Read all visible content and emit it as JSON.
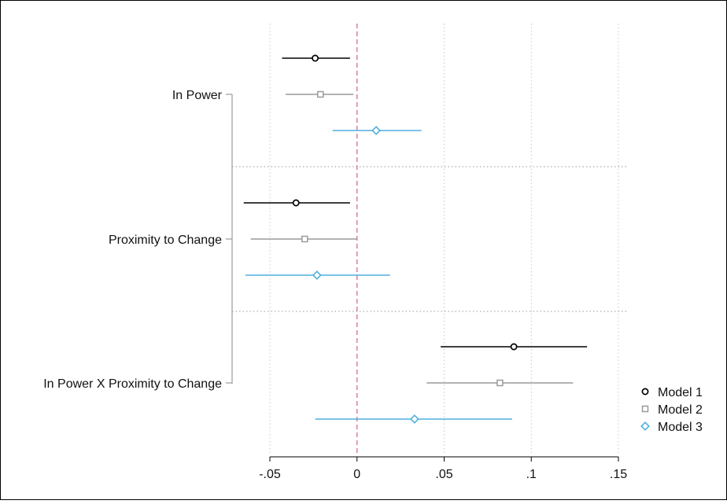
{
  "chart_data": {
    "type": "coefficient-plot",
    "title": "",
    "xlabel": "",
    "ylabel": "",
    "xlim": [
      -0.05,
      0.15
    ],
    "xticks": [
      {
        "value": -0.05,
        "label": "-.05"
      },
      {
        "value": 0,
        "label": "0"
      },
      {
        "value": 0.05,
        "label": ".05"
      },
      {
        "value": 0.1,
        "label": ".1"
      },
      {
        "value": 0.15,
        "label": ".15"
      }
    ],
    "reference_line": {
      "value": 0,
      "style": "dashed",
      "color": "#d9778e"
    },
    "grid": {
      "vertical": true,
      "group_separators": true
    },
    "legend_position": "bottom-right",
    "categories": [
      "In Power",
      "Proximity to Change",
      "In Power X Proximity to Change"
    ],
    "series": [
      {
        "name": "Model 1",
        "marker": "circle",
        "color": "#000000",
        "points": [
          {
            "estimate": -0.024,
            "ci_low": -0.043,
            "ci_high": -0.004
          },
          {
            "estimate": -0.035,
            "ci_low": -0.065,
            "ci_high": -0.004
          },
          {
            "estimate": 0.09,
            "ci_low": 0.048,
            "ci_high": 0.132
          }
        ]
      },
      {
        "name": "Model 2",
        "marker": "square",
        "color": "#9a9a9a",
        "points": [
          {
            "estimate": -0.021,
            "ci_low": -0.041,
            "ci_high": -0.002
          },
          {
            "estimate": -0.03,
            "ci_low": -0.061,
            "ci_high": 0.0
          },
          {
            "estimate": 0.082,
            "ci_low": 0.04,
            "ci_high": 0.124
          }
        ]
      },
      {
        "name": "Model 3",
        "marker": "diamond",
        "color": "#4fb0de",
        "points": [
          {
            "estimate": 0.011,
            "ci_low": -0.014,
            "ci_high": 0.037
          },
          {
            "estimate": -0.023,
            "ci_low": -0.064,
            "ci_high": 0.019
          },
          {
            "estimate": 0.033,
            "ci_low": -0.024,
            "ci_high": 0.089
          }
        ]
      }
    ]
  }
}
